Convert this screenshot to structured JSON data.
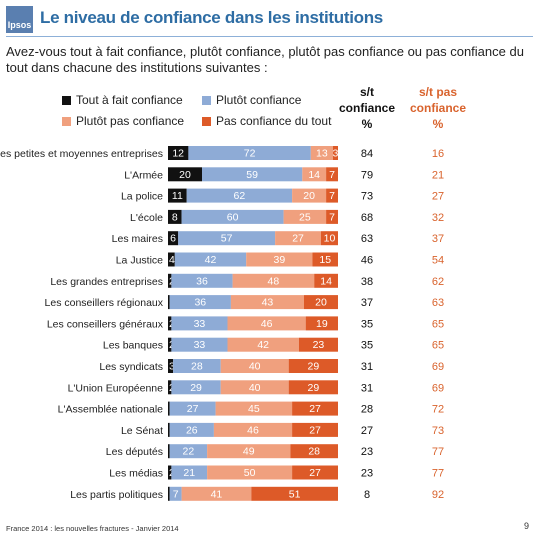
{
  "header": {
    "logo_text": "Ipsos",
    "title": "Le niveau de confiance dans les institutions",
    "question": "Avez-vous tout à fait confiance, plutôt confiance, plutôt pas confiance ou pas confiance du tout dans chacune des institutions suivantes :"
  },
  "columns": {
    "st_confiance": "s/t confiance %",
    "st_pas_confiance": "s/t pas confiance %"
  },
  "footer": {
    "source": "France 2014 : les nouvelles fractures - Janvier 2014",
    "page_number": "9"
  },
  "colors": {
    "tout_a_fait": "#111111",
    "plutot": "#8eabd6",
    "plutot_pas": "#f0a07e",
    "pas_du_tout": "#dd5a28",
    "title": "#2e6da4",
    "neg_column": "#d9632d"
  },
  "chart_data": {
    "type": "bar",
    "orientation": "horizontal",
    "stacked": true,
    "xlim": [
      0,
      100
    ],
    "legend_position": "top",
    "categories": [
      "Les petites et moyennes entreprises",
      "L'Armée",
      "La police",
      "L'école",
      "Les maires",
      "La Justice",
      "Les grandes entreprises",
      "Les conseillers régionaux",
      "Les conseillers généraux",
      "Les banques",
      "Les syndicats",
      "L'Union Européenne",
      "L'Assemblée nationale",
      "Le Sénat",
      "Les députés",
      "Les médias",
      "Les partis politiques"
    ],
    "series": [
      {
        "name": "Tout à fait confiance",
        "values": [
          12,
          20,
          11,
          8,
          6,
          4,
          2,
          1,
          2,
          2,
          3,
          2,
          1,
          1,
          1,
          2,
          1
        ]
      },
      {
        "name": "Plutôt confiance",
        "values": [
          72,
          59,
          62,
          60,
          57,
          42,
          36,
          36,
          33,
          33,
          28,
          29,
          27,
          26,
          22,
          21,
          7
        ]
      },
      {
        "name": "Plutôt pas confiance",
        "values": [
          13,
          14,
          20,
          25,
          27,
          39,
          48,
          43,
          46,
          42,
          40,
          40,
          45,
          46,
          49,
          50,
          41
        ]
      },
      {
        "name": "Pas confiance du tout",
        "values": [
          3,
          7,
          7,
          7,
          10,
          15,
          14,
          20,
          19,
          23,
          29,
          29,
          27,
          27,
          28,
          27,
          51
        ]
      }
    ],
    "st_confiance": [
      84,
      79,
      73,
      68,
      63,
      46,
      38,
      37,
      35,
      35,
      31,
      31,
      28,
      27,
      23,
      23,
      8
    ],
    "st_pas_confiance": [
      16,
      21,
      27,
      32,
      37,
      54,
      62,
      63,
      65,
      65,
      69,
      69,
      72,
      73,
      77,
      77,
      92
    ]
  }
}
